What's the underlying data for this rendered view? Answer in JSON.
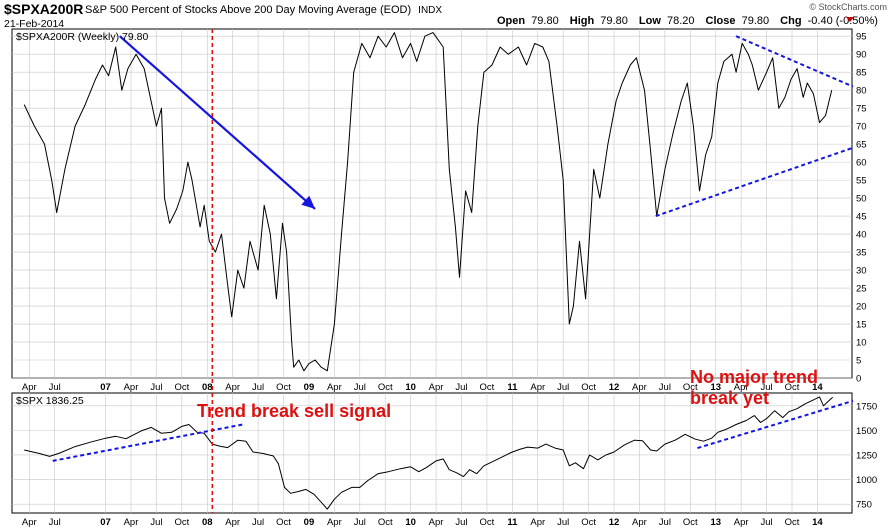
{
  "header": {
    "symbol": "$SPXA200R",
    "description": "S&P 500 Percent of Stocks Above 200 Day Moving Average (EOD)",
    "exchange": "INDX",
    "date": "21-Feb-2014",
    "open_label": "Open",
    "open_value": "79.80",
    "high_label": "High",
    "high_value": "79.80",
    "low_label": "Low",
    "low_value": "78.20",
    "close_label": "Close",
    "close_value": "79.80",
    "chg_label": "Chg",
    "chg_value": "-0.40 (-0.50%)",
    "watermark": "© StockCharts.com"
  },
  "colors": {
    "price_line": "#000000",
    "trend_blue": "#1515e0",
    "annotation_red": "#e01010",
    "grid": "#c8c8c8"
  },
  "chart_data": [
    {
      "type": "line",
      "legend": "$SPXA200R (Weekly) 79.80",
      "ylim": [
        0,
        97
      ],
      "y_ticks": [
        0,
        5,
        10,
        15,
        20,
        25,
        30,
        35,
        40,
        45,
        50,
        55,
        60,
        65,
        70,
        75,
        80,
        85,
        90,
        95
      ],
      "x_tick_labels": [
        "Apr",
        "Jul",
        "07",
        "Apr",
        "Jul",
        "Oct",
        "08",
        "Apr",
        "Jul",
        "Oct",
        "09",
        "Apr",
        "Jul",
        "Oct",
        "10",
        "Apr",
        "Jul",
        "Oct",
        "11",
        "Apr",
        "Jul",
        "Oct",
        "12",
        "Apr",
        "Jul",
        "Oct",
        "13",
        "Apr",
        "Jul",
        "Oct",
        "14"
      ],
      "series": [
        {
          "points": [
            [
              2006.2,
              76
            ],
            [
              2006.3,
              70
            ],
            [
              2006.4,
              65
            ],
            [
              2006.47,
              55
            ],
            [
              2006.52,
              46
            ],
            [
              2006.6,
              58
            ],
            [
              2006.7,
              70
            ],
            [
              2006.8,
              76
            ],
            [
              2006.9,
              83
            ],
            [
              2006.97,
              87
            ],
            [
              2007.03,
              84
            ],
            [
              2007.1,
              92
            ],
            [
              2007.16,
              80
            ],
            [
              2007.22,
              86
            ],
            [
              2007.3,
              90
            ],
            [
              2007.38,
              86
            ],
            [
              2007.44,
              78
            ],
            [
              2007.5,
              70
            ],
            [
              2007.55,
              75
            ],
            [
              2007.58,
              50
            ],
            [
              2007.63,
              43
            ],
            [
              2007.7,
              47
            ],
            [
              2007.76,
              52
            ],
            [
              2007.81,
              60
            ],
            [
              2007.85,
              55
            ],
            [
              2007.88,
              50
            ],
            [
              2007.93,
              42
            ],
            [
              2007.97,
              48
            ],
            [
              2008.02,
              38
            ],
            [
              2008.08,
              35
            ],
            [
              2008.14,
              40
            ],
            [
              2008.2,
              26
            ],
            [
              2008.24,
              17
            ],
            [
              2008.3,
              30
            ],
            [
              2008.36,
              25
            ],
            [
              2008.42,
              38
            ],
            [
              2008.5,
              30
            ],
            [
              2008.56,
              48
            ],
            [
              2008.62,
              40
            ],
            [
              2008.68,
              22
            ],
            [
              2008.74,
              43
            ],
            [
              2008.78,
              35
            ],
            [
              2008.83,
              10
            ],
            [
              2008.85,
              3
            ],
            [
              2008.9,
              5
            ],
            [
              2008.95,
              2
            ],
            [
              2009.0,
              4
            ],
            [
              2009.06,
              5
            ],
            [
              2009.12,
              3
            ],
            [
              2009.18,
              2
            ],
            [
              2009.25,
              15
            ],
            [
              2009.32,
              40
            ],
            [
              2009.38,
              60
            ],
            [
              2009.44,
              85
            ],
            [
              2009.52,
              93
            ],
            [
              2009.6,
              89
            ],
            [
              2009.68,
              95
            ],
            [
              2009.76,
              92
            ],
            [
              2009.84,
              96
            ],
            [
              2009.92,
              89
            ],
            [
              2010.0,
              93
            ],
            [
              2010.06,
              88
            ],
            [
              2010.14,
              95
            ],
            [
              2010.22,
              96
            ],
            [
              2010.32,
              92
            ],
            [
              2010.38,
              58
            ],
            [
              2010.44,
              42
            ],
            [
              2010.48,
              28
            ],
            [
              2010.54,
              52
            ],
            [
              2010.6,
              46
            ],
            [
              2010.66,
              70
            ],
            [
              2010.72,
              85
            ],
            [
              2010.8,
              87
            ],
            [
              2010.88,
              92
            ],
            [
              2010.96,
              90
            ],
            [
              2011.06,
              92
            ],
            [
              2011.14,
              87
            ],
            [
              2011.22,
              93
            ],
            [
              2011.3,
              92
            ],
            [
              2011.36,
              88
            ],
            [
              2011.44,
              70
            ],
            [
              2011.5,
              55
            ],
            [
              2011.56,
              15
            ],
            [
              2011.6,
              20
            ],
            [
              2011.66,
              38
            ],
            [
              2011.72,
              22
            ],
            [
              2011.8,
              58
            ],
            [
              2011.86,
              50
            ],
            [
              2011.94,
              65
            ],
            [
              2012.02,
              77
            ],
            [
              2012.08,
              82
            ],
            [
              2012.16,
              87
            ],
            [
              2012.22,
              89
            ],
            [
              2012.3,
              80
            ],
            [
              2012.36,
              63
            ],
            [
              2012.42,
              45
            ],
            [
              2012.5,
              58
            ],
            [
              2012.58,
              68
            ],
            [
              2012.66,
              77
            ],
            [
              2012.72,
              82
            ],
            [
              2012.78,
              70
            ],
            [
              2012.84,
              52
            ],
            [
              2012.9,
              62
            ],
            [
              2012.96,
              67
            ],
            [
              2013.02,
              82
            ],
            [
              2013.08,
              88
            ],
            [
              2013.16,
              90
            ],
            [
              2013.2,
              85
            ],
            [
              2013.26,
              93
            ],
            [
              2013.32,
              90
            ],
            [
              2013.36,
              87
            ],
            [
              2013.42,
              80
            ],
            [
              2013.5,
              85
            ],
            [
              2013.56,
              89
            ],
            [
              2013.62,
              75
            ],
            [
              2013.68,
              78
            ],
            [
              2013.74,
              83
            ],
            [
              2013.8,
              86
            ],
            [
              2013.86,
              78
            ],
            [
              2013.9,
              82
            ],
            [
              2013.96,
              79
            ],
            [
              2014.02,
              71
            ],
            [
              2014.08,
              73
            ],
            [
              2014.14,
              80
            ]
          ]
        }
      ],
      "annotations": [
        {
          "kind": "arrow",
          "from": [
            2007.14,
            95
          ],
          "to": [
            2009.06,
            47
          ]
        },
        {
          "kind": "trendline",
          "from": [
            2012.41,
            45
          ],
          "to": [
            2014.35,
            64
          ]
        },
        {
          "kind": "trendline",
          "from": [
            2013.2,
            95
          ],
          "to": [
            2014.35,
            81
          ]
        }
      ]
    },
    {
      "type": "line",
      "legend": "$SPX 1836.25",
      "ylim": [
        660,
        1880
      ],
      "y_ticks": [
        750,
        1000,
        1250,
        1500,
        1750
      ],
      "x_tick_labels": [
        "Apr",
        "Jul",
        "07",
        "Apr",
        "Jul",
        "Oct",
        "08",
        "Apr",
        "Jul",
        "Oct",
        "09",
        "Apr",
        "Jul",
        "Oct",
        "10",
        "Apr",
        "Jul",
        "Oct",
        "11",
        "Apr",
        "Jul",
        "Oct",
        "12",
        "Apr",
        "Jul",
        "Oct",
        "13",
        "Apr",
        "Jul",
        "Oct",
        "14"
      ],
      "series": [
        {
          "points": [
            [
              2006.2,
              1300
            ],
            [
              2006.35,
              1265
            ],
            [
              2006.45,
              1235
            ],
            [
              2006.55,
              1270
            ],
            [
              2006.7,
              1335
            ],
            [
              2006.85,
              1380
            ],
            [
              2007.0,
              1420
            ],
            [
              2007.1,
              1440
            ],
            [
              2007.2,
              1415
            ],
            [
              2007.35,
              1495
            ],
            [
              2007.45,
              1530
            ],
            [
              2007.55,
              1470
            ],
            [
              2007.65,
              1480
            ],
            [
              2007.75,
              1540
            ],
            [
              2007.82,
              1560
            ],
            [
              2007.9,
              1480
            ],
            [
              2007.97,
              1470
            ],
            [
              2008.05,
              1360
            ],
            [
              2008.12,
              1340
            ],
            [
              2008.2,
              1325
            ],
            [
              2008.3,
              1400
            ],
            [
              2008.38,
              1390
            ],
            [
              2008.45,
              1280
            ],
            [
              2008.55,
              1265
            ],
            [
              2008.65,
              1240
            ],
            [
              2008.7,
              1160
            ],
            [
              2008.76,
              920
            ],
            [
              2008.82,
              860
            ],
            [
              2008.9,
              880
            ],
            [
              2008.97,
              900
            ],
            [
              2009.05,
              850
            ],
            [
              2009.12,
              770
            ],
            [
              2009.18,
              700
            ],
            [
              2009.25,
              800
            ],
            [
              2009.32,
              870
            ],
            [
              2009.42,
              920
            ],
            [
              2009.5,
              920
            ],
            [
              2009.58,
              990
            ],
            [
              2009.68,
              1060
            ],
            [
              2009.78,
              1080
            ],
            [
              2009.9,
              1110
            ],
            [
              2010.0,
              1130
            ],
            [
              2010.08,
              1080
            ],
            [
              2010.15,
              1120
            ],
            [
              2010.25,
              1190
            ],
            [
              2010.32,
              1210
            ],
            [
              2010.38,
              1100
            ],
            [
              2010.45,
              1070
            ],
            [
              2010.52,
              1030
            ],
            [
              2010.58,
              1100
            ],
            [
              2010.65,
              1060
            ],
            [
              2010.72,
              1140
            ],
            [
              2010.8,
              1180
            ],
            [
              2010.9,
              1230
            ],
            [
              2011.0,
              1280
            ],
            [
              2011.08,
              1310
            ],
            [
              2011.15,
              1330
            ],
            [
              2011.25,
              1320
            ],
            [
              2011.33,
              1360
            ],
            [
              2011.42,
              1320
            ],
            [
              2011.5,
              1300
            ],
            [
              2011.56,
              1140
            ],
            [
              2011.62,
              1170
            ],
            [
              2011.7,
              1110
            ],
            [
              2011.76,
              1250
            ],
            [
              2011.84,
              1200
            ],
            [
              2011.92,
              1250
            ],
            [
              2012.0,
              1280
            ],
            [
              2012.1,
              1350
            ],
            [
              2012.2,
              1400
            ],
            [
              2012.28,
              1395
            ],
            [
              2012.36,
              1300
            ],
            [
              2012.42,
              1290
            ],
            [
              2012.5,
              1360
            ],
            [
              2012.6,
              1400
            ],
            [
              2012.7,
              1460
            ],
            [
              2012.8,
              1410
            ],
            [
              2012.88,
              1390
            ],
            [
              2012.96,
              1420
            ],
            [
              2013.02,
              1480
            ],
            [
              2013.1,
              1510
            ],
            [
              2013.2,
              1560
            ],
            [
              2013.3,
              1600
            ],
            [
              2013.38,
              1650
            ],
            [
              2013.44,
              1580
            ],
            [
              2013.5,
              1620
            ],
            [
              2013.58,
              1700
            ],
            [
              2013.66,
              1630
            ],
            [
              2013.72,
              1690
            ],
            [
              2013.8,
              1720
            ],
            [
              2013.88,
              1770
            ],
            [
              2013.96,
              1810
            ],
            [
              2014.02,
              1840
            ],
            [
              2014.06,
              1750
            ],
            [
              2014.1,
              1790
            ],
            [
              2014.15,
              1836
            ]
          ]
        }
      ],
      "annotations": [
        {
          "kind": "trendline",
          "from": [
            2006.48,
            1190
          ],
          "to": [
            2008.35,
            1560
          ]
        },
        {
          "kind": "trendline",
          "from": [
            2012.82,
            1320
          ],
          "to": [
            2014.35,
            1800
          ]
        }
      ]
    }
  ],
  "signal_line_x": 2008.05,
  "annotations_text": {
    "trend_break": "Trend break sell signal",
    "no_break_line1": "No major trend",
    "no_break_line2": "break yet"
  }
}
